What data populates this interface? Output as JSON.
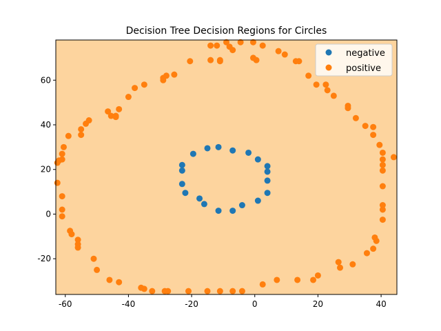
{
  "chart_data": {
    "type": "scatter",
    "title": "Decision Tree Decision Regions for Circles",
    "xlabel": "",
    "ylabel": "",
    "xlim": [
      -63,
      45
    ],
    "ylim": [
      -36,
      78
    ],
    "x_ticks": [
      -60,
      -40,
      -20,
      0,
      20,
      40
    ],
    "y_ticks": [
      -20,
      0,
      20,
      40,
      60
    ],
    "grid": false,
    "legend_position": "top-right",
    "background_region": {
      "label": "positive",
      "color": "#fdd49e"
    },
    "series": [
      {
        "name": "negative",
        "color": "#1f77b4",
        "points": [
          [
            -11.5,
            30
          ],
          [
            -15,
            29.5
          ],
          [
            -7,
            28.5
          ],
          [
            -2,
            27.5
          ],
          [
            -19.5,
            27
          ],
          [
            1,
            24.5
          ],
          [
            -23,
            22
          ],
          [
            4,
            21.5
          ],
          [
            -23,
            19.5
          ],
          [
            4,
            19
          ],
          [
            4,
            15
          ],
          [
            -23,
            13.5
          ],
          [
            -22,
            9.5
          ],
          [
            4,
            9.5
          ],
          [
            -17.5,
            7
          ],
          [
            1,
            6
          ],
          [
            -16,
            4.5
          ],
          [
            -4,
            4
          ],
          [
            -11.5,
            1.5
          ],
          [
            -7,
            1.5
          ]
        ]
      },
      {
        "name": "positive",
        "color": "#ff7f0e",
        "points": [
          [
            -9,
            77
          ],
          [
            -4.5,
            77
          ],
          [
            -0.5,
            77
          ],
          [
            -14,
            75.5
          ],
          [
            -12,
            75.5
          ],
          [
            2.5,
            75.5
          ],
          [
            -8,
            75
          ],
          [
            -7,
            73.5
          ],
          [
            7.5,
            73
          ],
          [
            9.5,
            71.5
          ],
          [
            -0.5,
            70
          ],
          [
            0.5,
            69
          ],
          [
            -14,
            69
          ],
          [
            -11,
            69
          ],
          [
            -11,
            68.5
          ],
          [
            -20.5,
            68.5
          ],
          [
            13,
            68.5
          ],
          [
            14,
            68.5
          ],
          [
            -25.5,
            62.5
          ],
          [
            -29,
            61
          ],
          [
            -28,
            62
          ],
          [
            -29,
            60
          ],
          [
            17,
            62
          ],
          [
            19.5,
            58
          ],
          [
            22.5,
            58
          ],
          [
            -35,
            58
          ],
          [
            -38,
            56.5
          ],
          [
            23,
            55.5
          ],
          [
            25,
            53
          ],
          [
            -40,
            52.5
          ],
          [
            29.5,
            48.5
          ],
          [
            29.5,
            47.5
          ],
          [
            -43,
            47
          ],
          [
            -46.5,
            46
          ],
          [
            -45.5,
            44
          ],
          [
            -44,
            44
          ],
          [
            -44,
            43.5
          ],
          [
            32,
            43
          ],
          [
            -52.5,
            42
          ],
          [
            -53.5,
            40.5
          ],
          [
            35,
            39.5
          ],
          [
            37.5,
            39
          ],
          [
            -55,
            38
          ],
          [
            -55,
            35.5
          ],
          [
            37.5,
            35.5
          ],
          [
            -59,
            35
          ],
          [
            39.5,
            31
          ],
          [
            -60.5,
            30
          ],
          [
            -61,
            27
          ],
          [
            40.5,
            27.5
          ],
          [
            44,
            25.5
          ],
          [
            40.5,
            24.5
          ],
          [
            -61,
            24.5
          ],
          [
            -62,
            24
          ],
          [
            -62.5,
            23
          ],
          [
            40.5,
            22
          ],
          [
            40.5,
            19.5
          ],
          [
            -62.5,
            14
          ],
          [
            40.5,
            12.5
          ],
          [
            -61,
            8
          ],
          [
            40.5,
            4
          ],
          [
            40.5,
            2
          ],
          [
            -61,
            2
          ],
          [
            -61,
            -1
          ],
          [
            40.5,
            -2.5
          ],
          [
            -58.5,
            -7.5
          ],
          [
            -58,
            -9
          ],
          [
            38,
            -10.5
          ],
          [
            38.5,
            -12
          ],
          [
            -56,
            -11.5
          ],
          [
            -56,
            -13.5
          ],
          [
            -56,
            -15
          ],
          [
            37.5,
            -15.5
          ],
          [
            35.5,
            -17.5
          ],
          [
            -51,
            -20
          ],
          [
            26.5,
            -21.5
          ],
          [
            31,
            -22.5
          ],
          [
            27,
            -24
          ],
          [
            -50,
            -25
          ],
          [
            20,
            -27.5
          ],
          [
            -46,
            -29.5
          ],
          [
            -43,
            -30.5
          ],
          [
            18.5,
            -29.5
          ],
          [
            7,
            -29.5
          ],
          [
            13.5,
            -29.5
          ],
          [
            2.5,
            -31.5
          ],
          [
            -36,
            -33
          ],
          [
            -35,
            -33.5
          ],
          [
            -32.5,
            -34.5
          ],
          [
            -28.5,
            -34.5
          ],
          [
            -27.5,
            -34.5
          ],
          [
            -21,
            -34.5
          ],
          [
            -15,
            -34.5
          ],
          [
            -11,
            -34.5
          ],
          [
            -7,
            -34.5
          ],
          [
            -4,
            -34.5
          ]
        ]
      }
    ]
  }
}
